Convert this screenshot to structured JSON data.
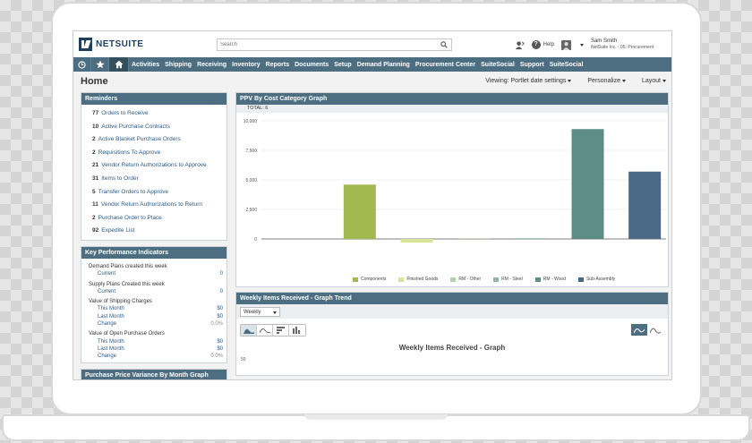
{
  "header": {
    "logo": "NETSUITE",
    "search_placeholder": "Search",
    "help": "Help",
    "user_name": "Sam Smith",
    "user_role": "NetSuite Inc. - 05: Procurement"
  },
  "nav": {
    "items": [
      "Activities",
      "Shipping",
      "Receiving",
      "Inventory",
      "Reports",
      "Documents",
      "Setup",
      "Demand Planning",
      "Procurement Center",
      "SuiteSocial",
      "Support",
      "SuiteSocial"
    ]
  },
  "page": {
    "title": "Home",
    "viewing": "Viewing: Portlet date settings",
    "personalize": "Personalize",
    "layout": "Layout"
  },
  "reminders": {
    "title": "Reminders",
    "items": [
      {
        "count": "77",
        "label": "Orders to Receive"
      },
      {
        "count": "10",
        "label": "Active Purchase Contracts"
      },
      {
        "count": "2",
        "label": "Active Blanket Purchase Orders"
      },
      {
        "count": "2",
        "label": "Requisitions To Approve"
      },
      {
        "count": "21",
        "label": "Vendor Return Authorizations to Approve"
      },
      {
        "count": "31",
        "label": "Items to Order"
      },
      {
        "count": "5",
        "label": "Transfer Orders to Approve"
      },
      {
        "count": "11",
        "label": "Vendor Return Authorizations to Return"
      },
      {
        "count": "2",
        "label": "Purchase Order to Place"
      },
      {
        "count": "92",
        "label": "Expedite List"
      }
    ]
  },
  "kpi": {
    "title": "Key Performance Indicators",
    "rows": [
      {
        "label": "Demand Plans created this week",
        "value": "",
        "kind": "grp"
      },
      {
        "label": "Current",
        "value": "0",
        "kind": "sub"
      },
      {
        "label": "Supply Plans Created this week",
        "value": "",
        "kind": "grp"
      },
      {
        "label": "Current",
        "value": "0",
        "kind": "sub"
      },
      {
        "label": "Value of Shipping Charges",
        "value": "",
        "kind": "grp"
      },
      {
        "label": "This Month",
        "value": "$0",
        "kind": "sub"
      },
      {
        "label": "Last Month",
        "value": "$0",
        "kind": "sub"
      },
      {
        "label": "Change",
        "value": "0.0%",
        "kind": "sub-muted"
      },
      {
        "label": "Value of Open Purchase Orders",
        "value": "",
        "kind": "grp"
      },
      {
        "label": "This Month",
        "value": "$0",
        "kind": "sub"
      },
      {
        "label": "Last Month",
        "value": "$0",
        "kind": "sub"
      },
      {
        "label": "Change",
        "value": "0.0%",
        "kind": "sub-muted"
      }
    ]
  },
  "ppv_month": {
    "title": "Purchase Price Variance By Month Graph"
  },
  "ppv": {
    "title": "PPV By Cost Category Graph",
    "total": "TOTAL: 6"
  },
  "weekly": {
    "title": "Weekly Items Received - Graph Trend",
    "select": "Weekly",
    "graph_title": "Weekly Items Received - Graph",
    "y_top": "50"
  },
  "chart_data": {
    "type": "bar",
    "title": "",
    "categories": [
      "Components",
      "Finished Goods",
      "RM - Other",
      "RM - Steel",
      "RM - Wood",
      "Sub-Assembly"
    ],
    "values": [
      4600,
      -300,
      50,
      50,
      9300,
      5700
    ],
    "colors": [
      "#a2b850",
      "#d9e49a",
      "#b5d1a9",
      "#8fb7ab",
      "#5e8c86",
      "#4a6987"
    ],
    "yticks": [
      "10,000",
      "7,500",
      "5,000",
      "2,500",
      "0"
    ],
    "ylim": [
      -500,
      10000
    ],
    "grid": true,
    "legend": "bottom"
  }
}
